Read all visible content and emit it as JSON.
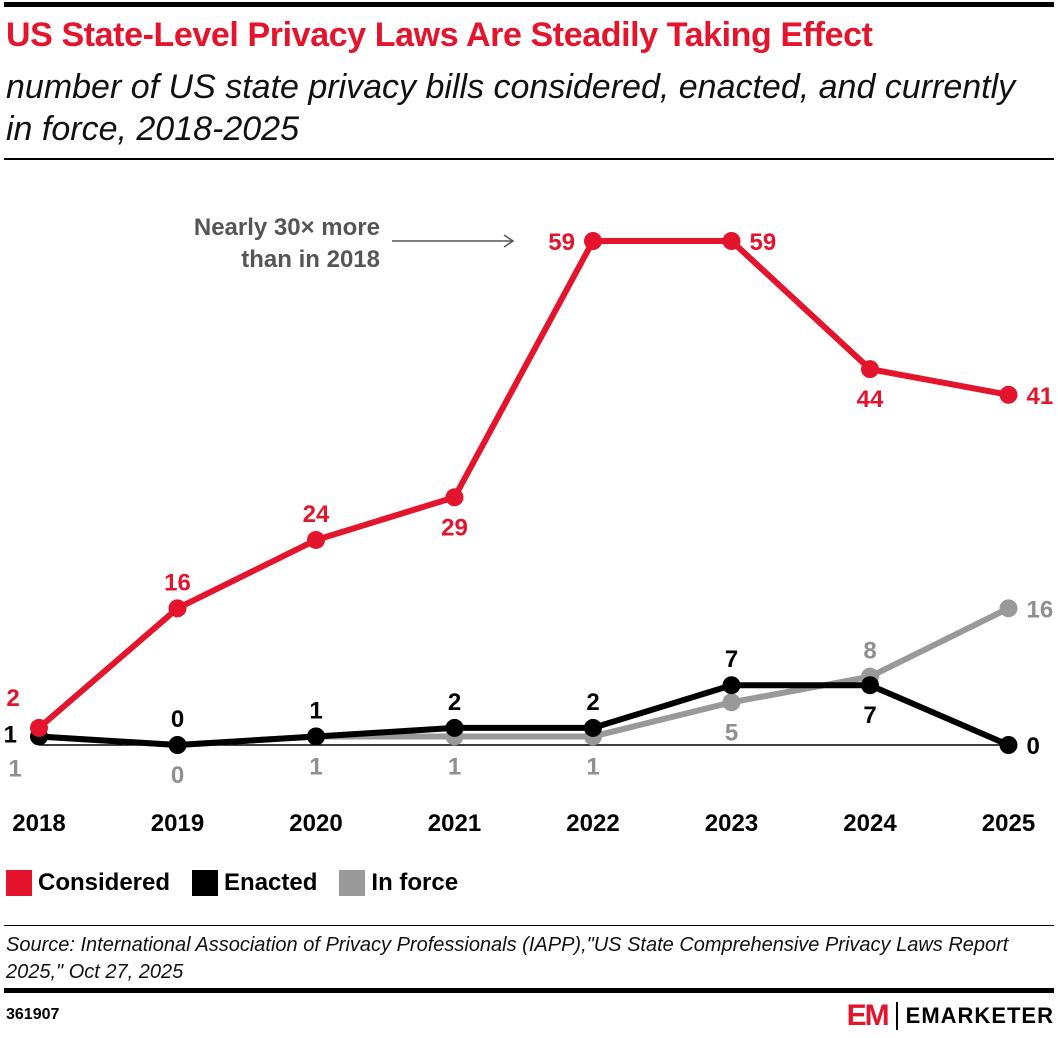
{
  "header": {
    "title": "US State-Level Privacy Laws Are Steadily Taking Effect",
    "subtitle": "number of US state privacy bills considered, enacted, and currently in force, 2018-2025"
  },
  "chart_data": {
    "type": "line",
    "title": "US State-Level Privacy Laws Are Steadily Taking Effect",
    "subtitle": "number of US state privacy bills considered, enacted, and currently in force, 2018-2025",
    "x": [
      "2018",
      "2019",
      "2020",
      "2021",
      "2022",
      "2023",
      "2024",
      "2025"
    ],
    "ylim": [
      0,
      59
    ],
    "grid": false,
    "legend_position": "bottom-left",
    "series": [
      {
        "name": "Considered",
        "color": "#e4142d",
        "values": [
          2,
          16,
          24,
          29,
          59,
          59,
          44,
          41
        ]
      },
      {
        "name": "Enacted",
        "color": "#000000",
        "values": [
          1,
          0,
          1,
          2,
          2,
          7,
          7,
          0
        ]
      },
      {
        "name": "In force",
        "color": "#999999",
        "values": [
          1,
          0,
          1,
          1,
          1,
          5,
          8,
          16
        ]
      }
    ],
    "annotations": [
      {
        "text": "Nearly 30× more than in 2018",
        "lines": [
          "Nearly 30× more",
          "than in 2018"
        ],
        "points_to": {
          "series": "Considered",
          "x": "2022"
        }
      }
    ]
  },
  "legend": [
    {
      "label": "Considered",
      "color": "#e4142d"
    },
    {
      "label": "Enacted",
      "color": "#000000"
    },
    {
      "label": "In force",
      "color": "#999999"
    }
  ],
  "footer": {
    "source": "Source: International Association of Privacy Professionals (IAPP),\"US State Comprehensive Privacy Laws Report 2025,\" Oct 27, 2025",
    "chart_id": "361907",
    "brand_mark": "EM",
    "brand_name": "EMARKETER"
  }
}
